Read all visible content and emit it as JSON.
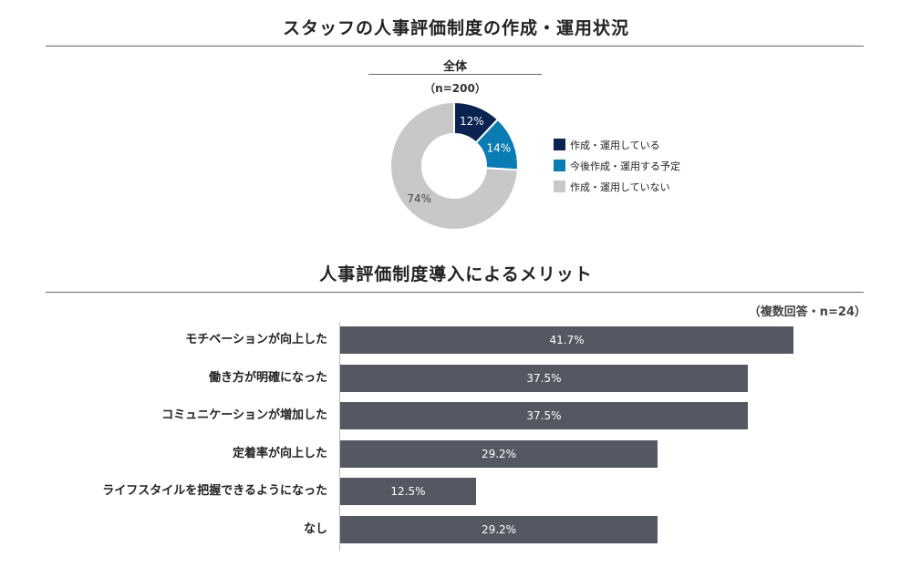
{
  "pie_section": {
    "title": "スタッフの人事評価制度の作成・運用状況",
    "subgroup_label": "全体",
    "sample_note": "（n=200）"
  },
  "bar_section": {
    "title": "人事評価制度導入によるメリット",
    "note": "（複数回答・n=24）"
  },
  "chart_data": [
    {
      "type": "pie",
      "title": "スタッフの人事評価制度の作成・運用状況",
      "donut": true,
      "legend_position": "right",
      "slices": [
        {
          "label": "作成・運用している",
          "value": 12,
          "display": "12%",
          "color": "#0b2350",
          "text_color": "#ffffff"
        },
        {
          "label": "今後作成・運用する予定",
          "value": 14,
          "display": "14%",
          "color": "#0b7bb3",
          "text_color": "#ffffff"
        },
        {
          "label": "作成・運用していない",
          "value": 74,
          "display": "74%",
          "color": "#c8c8c8",
          "text_color": "#444444"
        }
      ]
    },
    {
      "type": "bar",
      "orientation": "horizontal",
      "title": "人事評価制度導入によるメリット",
      "categories": [
        "モチベーションが向上した",
        "働き方が明確になった",
        "コミュニケーションが増加した",
        "定着率が向上した",
        "ライフスタイルを把握できるようになった",
        "なし"
      ],
      "values": [
        41.7,
        37.5,
        37.5,
        29.2,
        12.5,
        29.2
      ],
      "value_labels": [
        "41.7%",
        "37.5%",
        "37.5%",
        "29.2%",
        "12.5%",
        "29.2%"
      ],
      "bar_color": "#535862",
      "xlim": [
        0,
        42
      ]
    }
  ]
}
